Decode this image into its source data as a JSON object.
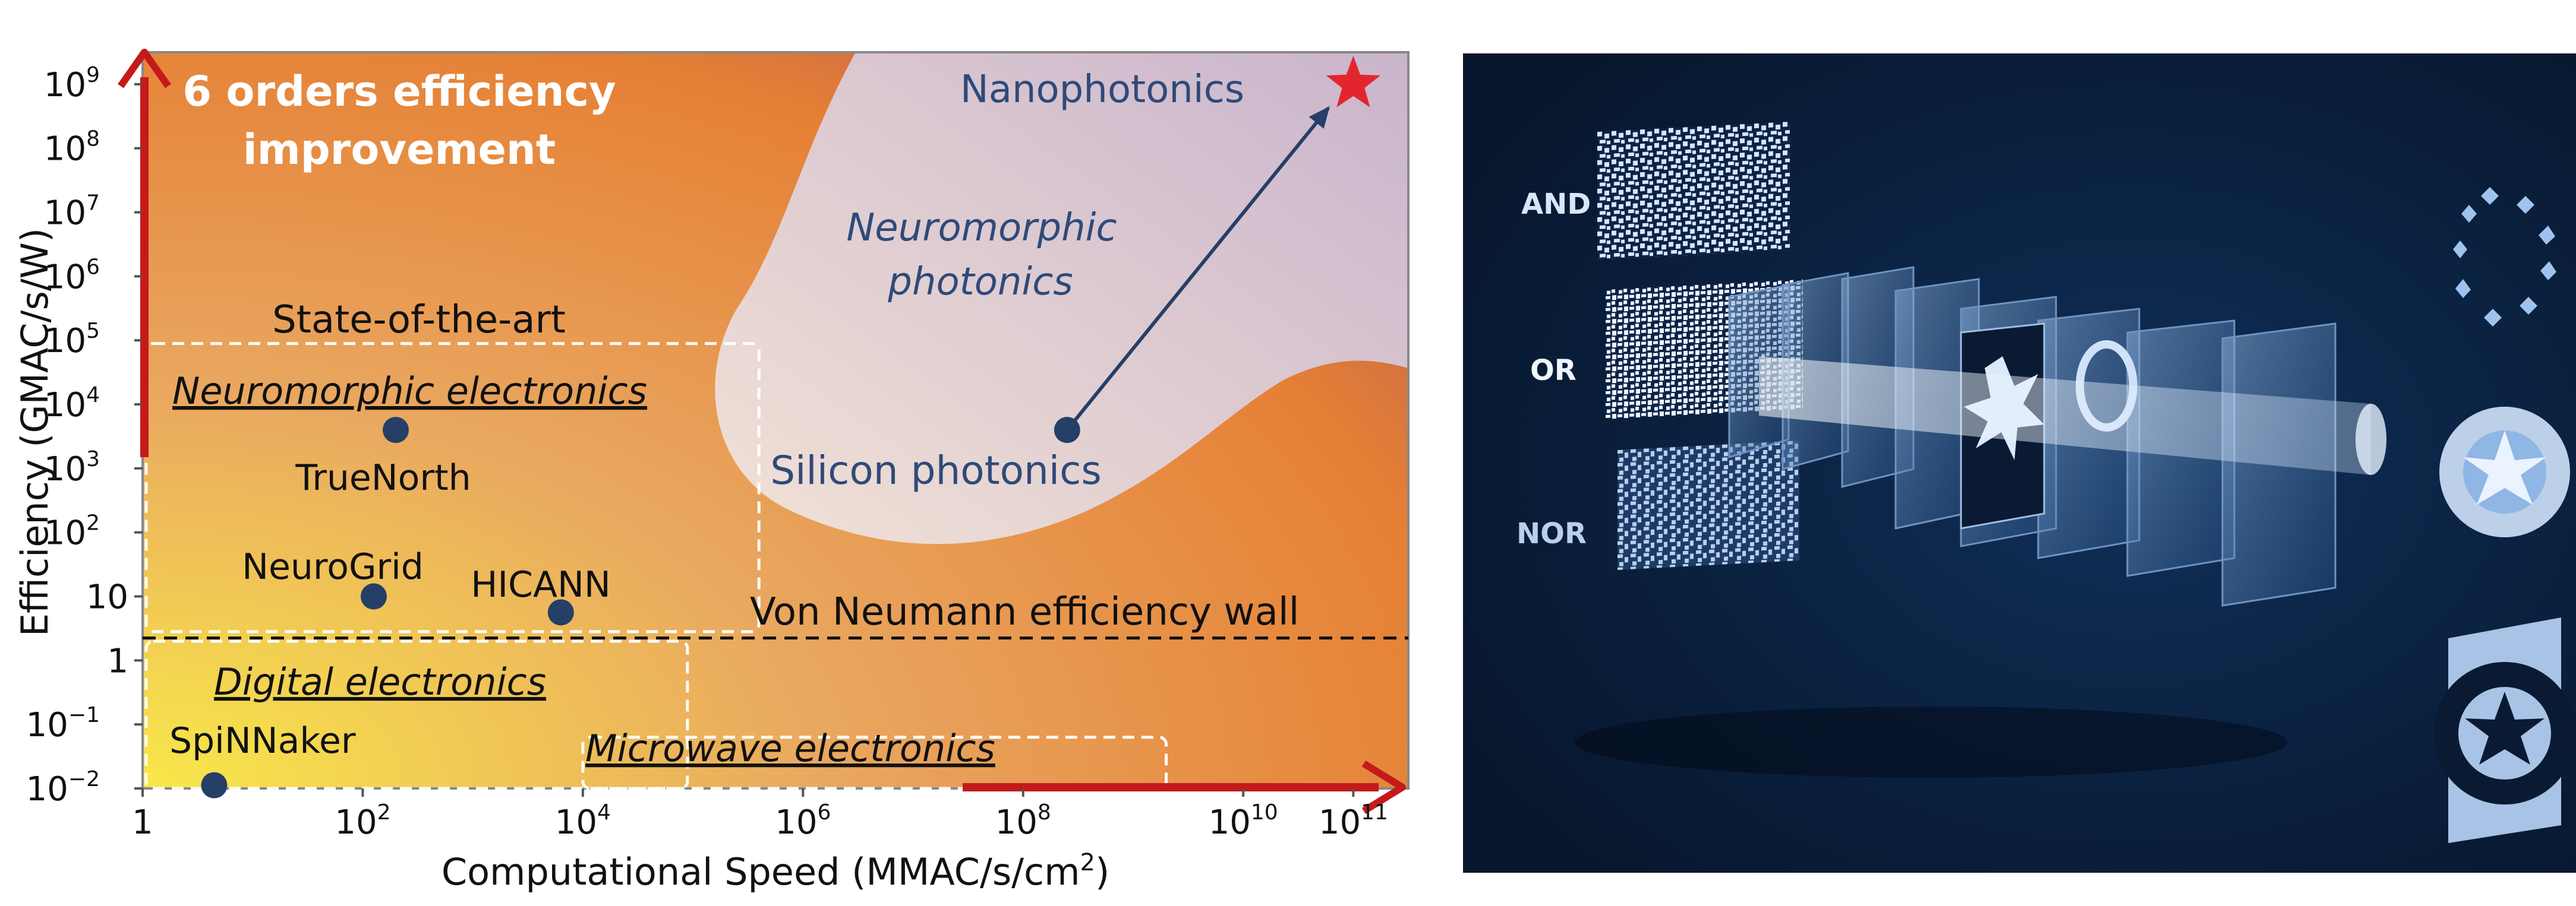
{
  "chart_data": {
    "type": "scatter",
    "x_log_base": 10,
    "y_log_base": 10,
    "xlim_exp": [
      0,
      11.5
    ],
    "ylim_exp": [
      -2,
      9.5
    ],
    "xlabel": "Computational Speed (MMAC/s/cm",
    "xlabel_sup": "2",
    "xlabel_tail": ")",
    "ylabel": "Efficiency (GMAC/s/W)",
    "x_ticks": [
      {
        "exp": 0,
        "base": "1",
        "sup": ""
      },
      {
        "exp": 2,
        "base": "10",
        "sup": "2"
      },
      {
        "exp": 4,
        "base": "10",
        "sup": "4"
      },
      {
        "exp": 6,
        "base": "10",
        "sup": "6"
      },
      {
        "exp": 8,
        "base": "10",
        "sup": "8"
      },
      {
        "exp": 10,
        "base": "10",
        "sup": "10"
      },
      {
        "exp": 11,
        "base": "10",
        "sup": "11"
      }
    ],
    "y_ticks": [
      {
        "exp": -2,
        "base": "10",
        "sup": "−2"
      },
      {
        "exp": -1,
        "base": "10",
        "sup": "−1"
      },
      {
        "exp": 0,
        "base": "1",
        "sup": ""
      },
      {
        "exp": 1,
        "base": "10",
        "sup": ""
      },
      {
        "exp": 2,
        "base": "10",
        "sup": "2"
      },
      {
        "exp": 3,
        "base": "10",
        "sup": "3"
      },
      {
        "exp": 4,
        "base": "10",
        "sup": "4"
      },
      {
        "exp": 5,
        "base": "10",
        "sup": "5"
      },
      {
        "exp": 6,
        "base": "10",
        "sup": "6"
      },
      {
        "exp": 7,
        "base": "10",
        "sup": "7"
      },
      {
        "exp": 8,
        "base": "10",
        "sup": "8"
      },
      {
        "exp": 9,
        "base": "10",
        "sup": "9"
      }
    ],
    "points": [
      {
        "name": "TrueNorth",
        "x_exp": 2.3,
        "y_exp": 3.6
      },
      {
        "name": "NeuroGrid",
        "x_exp": 2.1,
        "y_exp": 1.0
      },
      {
        "name": "HICANN",
        "x_exp": 3.8,
        "y_exp": 0.75
      },
      {
        "name": "SpiNNaker",
        "x_exp": 0.65,
        "y_exp": -1.95
      },
      {
        "name": "Silicon photonics",
        "x_exp": 8.4,
        "y_exp": 3.6
      },
      {
        "name": "Nanophotonics",
        "x_exp": 11.0,
        "y_exp": 9.0
      }
    ],
    "point_labels": {
      "truenorth": "TrueNorth",
      "neurogrid": "NeuroGrid",
      "hicann": "HICANN",
      "spinnaker": "SpiNNaker",
      "silicon": "Silicon photonics",
      "nanophotonics": "Nanophotonics"
    },
    "reference_line": {
      "label": "Von Neumann efficiency wall",
      "y_exp": 0.35
    },
    "region_labels": {
      "state_of_the_art": "State-of-the-art",
      "neuromorphic_photonics_line1": "Neuromorphic",
      "neuromorphic_photonics_line2": "photonics"
    },
    "boxes": [
      {
        "label": "Neuromorphic electronics",
        "x_exp": [
          0,
          5.6
        ],
        "y_exp": [
          0.45,
          4.95
        ]
      },
      {
        "label": "Digital electronics",
        "x_exp": [
          0,
          4.95
        ],
        "y_exp": [
          -2.0,
          0.3
        ]
      },
      {
        "label": "Microwave electronics",
        "x_exp": [
          4.0,
          9.3
        ],
        "y_exp": [
          -2.0,
          -1.2
        ]
      }
    ],
    "annotation": {
      "line1": "6 orders efficiency",
      "line2": "improvement"
    },
    "colors": {
      "warm_light": "#f8e84a",
      "warm_mid": "#e9a760",
      "warm_orange": "#e58035",
      "warm_dark": "#9a3f6a",
      "photonics_region": "#f2e2d6",
      "photonics_tint": "#c9b4cc",
      "marker": "#263f67",
      "arrow_red": "#c41a1a",
      "star_red": "#e3262e",
      "text_dark": "#111111",
      "text_blue": "#2f4a7a"
    }
  },
  "illustration": {
    "logic_labels": [
      "AND",
      "OR",
      "NOR"
    ],
    "colors": {
      "background_dark": "#07162c",
      "background_mid": "#0f2f59",
      "glow": "#bcd8f8"
    }
  }
}
